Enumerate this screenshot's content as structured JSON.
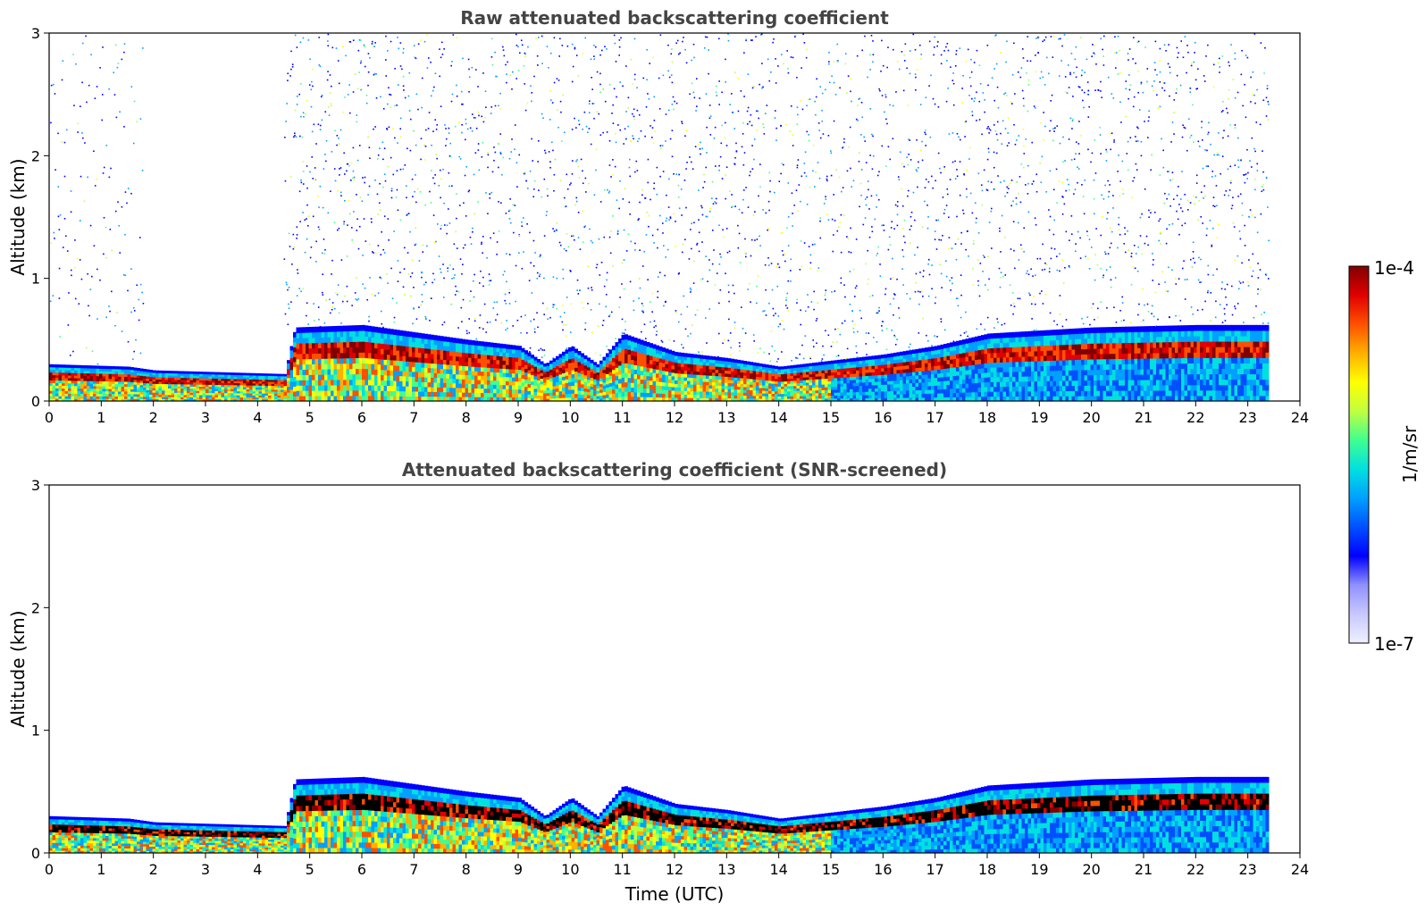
{
  "chart_data": [
    {
      "type": "heatmap",
      "title": "Raw attenuated backscattering coefficient",
      "xlabel": "",
      "ylabel": "Altitude (km)",
      "xlim": [
        0,
        24
      ],
      "ylim": [
        0,
        3
      ],
      "xticks": [
        "0",
        "1",
        "2",
        "3",
        "4",
        "5",
        "6",
        "7",
        "8",
        "9",
        "10",
        "11",
        "12",
        "13",
        "14",
        "15",
        "16",
        "17",
        "18",
        "19",
        "20",
        "21",
        "22",
        "23",
        "24"
      ],
      "yticks": [
        "0",
        "1",
        "2",
        "3"
      ],
      "data_end_hour": 23.35,
      "layer_top_km": [
        [
          0,
          0.3
        ],
        [
          1.5,
          0.28
        ],
        [
          2,
          0.25
        ],
        [
          4.5,
          0.22
        ],
        [
          4.7,
          0.6
        ],
        [
          6,
          0.62
        ],
        [
          8,
          0.5
        ],
        [
          9,
          0.45
        ],
        [
          9.5,
          0.3
        ],
        [
          10,
          0.45
        ],
        [
          10.5,
          0.3
        ],
        [
          11,
          0.55
        ],
        [
          12,
          0.4
        ],
        [
          13,
          0.35
        ],
        [
          14,
          0.28
        ],
        [
          15,
          0.33
        ],
        [
          16,
          0.38
        ],
        [
          17,
          0.45
        ],
        [
          18,
          0.55
        ],
        [
          20,
          0.6
        ],
        [
          22,
          0.62
        ],
        [
          23.35,
          0.62
        ]
      ]
    },
    {
      "type": "heatmap",
      "title": "Attenuated backscattering coefficient (SNR-screened)",
      "xlabel": "Time (UTC)",
      "ylabel": "Altitude (km)",
      "xlim": [
        0,
        24
      ],
      "ylim": [
        0,
        3
      ],
      "xticks": [
        "0",
        "1",
        "2",
        "3",
        "4",
        "5",
        "6",
        "7",
        "8",
        "9",
        "10",
        "11",
        "12",
        "13",
        "14",
        "15",
        "16",
        "17",
        "18",
        "19",
        "20",
        "21",
        "22",
        "23",
        "24"
      ],
      "yticks": [
        "0",
        "1",
        "2",
        "3"
      ],
      "data_end_hour": 23.35
    }
  ],
  "colorbar": {
    "label": "1/m/sr",
    "max_label": "1e-4",
    "min_label": "1e-7",
    "colors": [
      "#f0f0ff",
      "#c8c8ff",
      "#9090ff",
      "#0000ff",
      "#0050ff",
      "#00a0ff",
      "#00e0e0",
      "#40ff90",
      "#c0ff40",
      "#ffff00",
      "#ffb000",
      "#ff5000",
      "#e00000",
      "#800000"
    ]
  }
}
